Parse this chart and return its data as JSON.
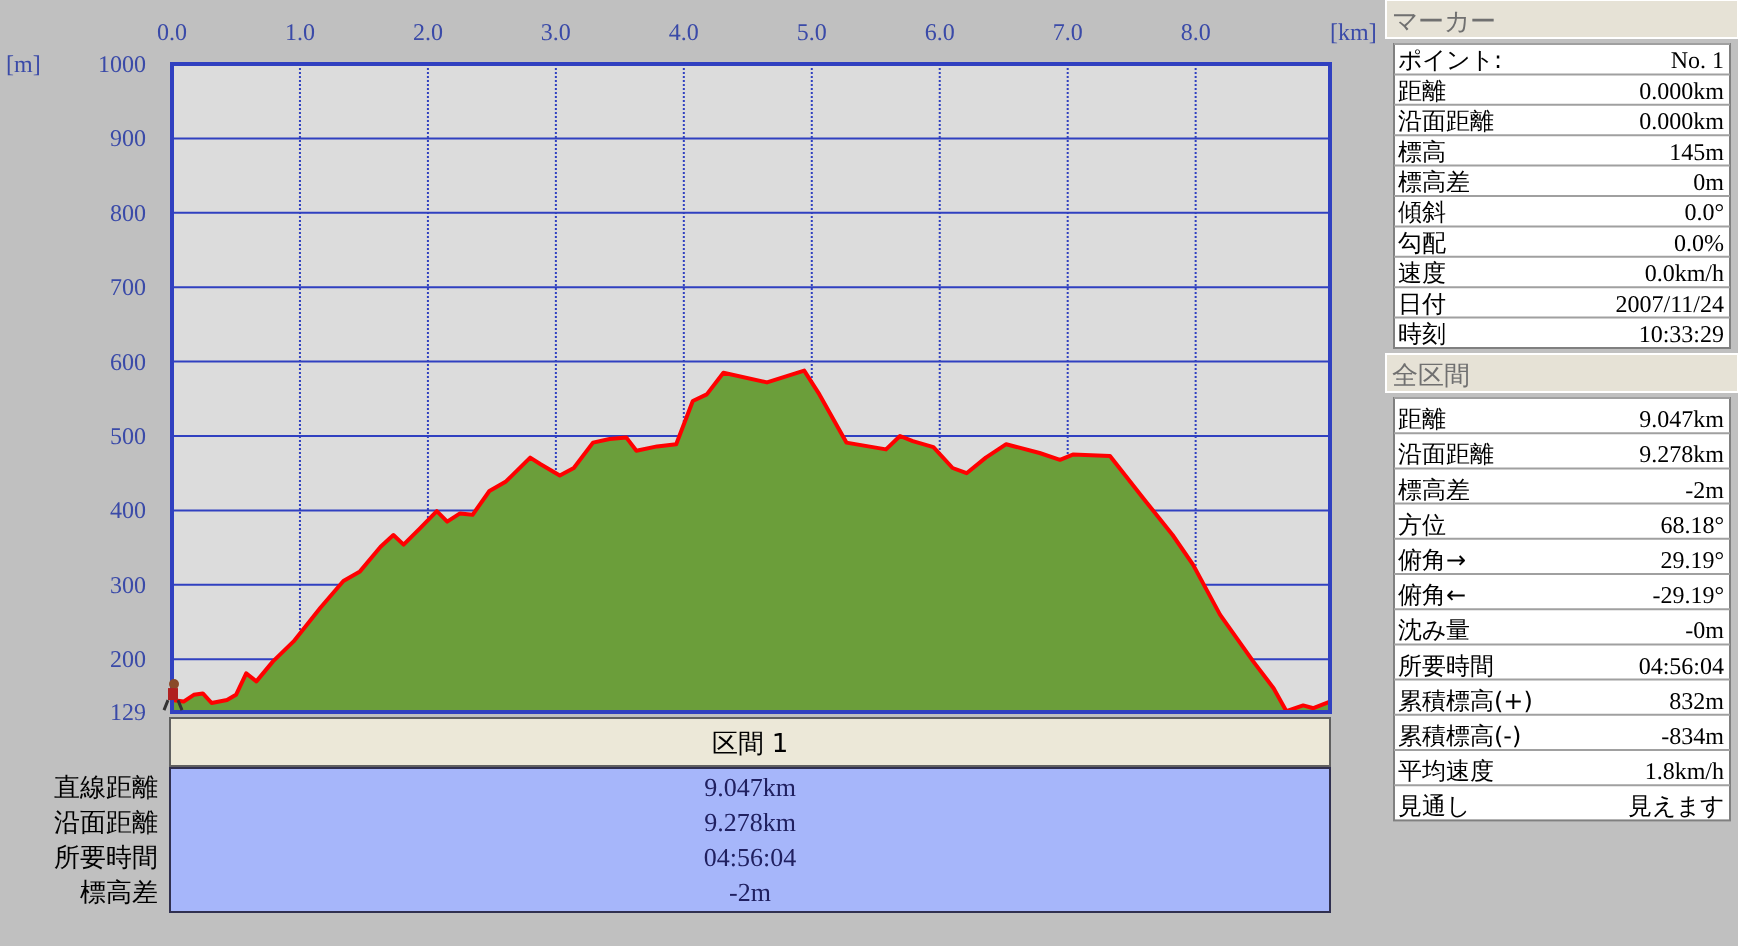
{
  "chart_data": [
    {
      "type": "area",
      "xlabel": "[km]",
      "ylabel": "[m]",
      "grid": true,
      "color": "#6b9e3a",
      "x": [
        0,
        0.09,
        0.17,
        0.24,
        0.31,
        0.43,
        0.5,
        0.58,
        0.66,
        0.79,
        0.95,
        1.16,
        1.34,
        1.47,
        1.63,
        1.73,
        1.81,
        1.94,
        2.07,
        2.15,
        2.25,
        2.35,
        2.48,
        2.61,
        2.8,
        2.88,
        3.03,
        3.14,
        3.29,
        3.42,
        3.55,
        3.63,
        3.79,
        3.94,
        4.07,
        4.18,
        4.31,
        4.65,
        4.94,
        5.06,
        5.27,
        5.58,
        5.69,
        5.79,
        5.95,
        6.1,
        6.21,
        6.36,
        6.52,
        6.78,
        6.94,
        7.04,
        7.33,
        7.61,
        7.82,
        7.98,
        8.19,
        8.45,
        8.61,
        8.71,
        8.84,
        8.92,
        9.05
      ],
      "values": [
        145,
        143,
        152,
        154,
        141,
        145,
        152,
        181,
        170,
        197,
        224,
        269,
        305,
        318,
        351,
        367,
        354,
        376,
        399,
        385,
        396,
        394,
        426,
        439,
        471,
        462,
        447,
        457,
        491,
        496,
        498,
        480,
        486,
        489,
        547,
        556,
        585,
        572,
        588,
        556,
        491,
        482,
        500,
        493,
        485,
        457,
        450,
        471,
        489,
        477,
        468,
        475,
        473,
        412,
        367,
        327,
        260,
        197,
        161,
        130,
        138,
        134,
        143
      ],
      "xlim": [
        0,
        9.05
      ],
      "ylim": [
        129,
        1000
      ],
      "xticks": [
        {
          "value": 0,
          "label": "0.0"
        },
        {
          "value": 1,
          "label": "1.0"
        },
        {
          "value": 2,
          "label": "2.0"
        },
        {
          "value": 3,
          "label": "3.0"
        },
        {
          "value": 4,
          "label": "4.0"
        },
        {
          "value": 5,
          "label": "5.0"
        },
        {
          "value": 6,
          "label": "6.0"
        },
        {
          "value": 7,
          "label": "7.0"
        },
        {
          "value": 8,
          "label": "8.0"
        }
      ],
      "yticks": [
        129,
        200,
        300,
        400,
        500,
        600,
        700,
        800,
        900,
        1000
      ]
    },
    {
      "type": "other",
      "title": "マーカー",
      "annotations": [
        "ポイント:",
        "No. 1",
        "距離",
        "0.000km",
        "沿面距離",
        "0.000km",
        "標高",
        "145m",
        "標高差",
        "0m",
        "傾斜",
        "0.0°",
        "勾配",
        "0.0%",
        "速度",
        "0.0km/h",
        "日付",
        "2007/11/24",
        "時刻",
        "10:33:29"
      ]
    },
    {
      "type": "other",
      "title": "全区間",
      "annotations": [
        "距離",
        "9.047km",
        "沿面距離",
        "9.278km",
        "標高差",
        "-2m",
        "方位",
        "68.18°",
        "俯角→",
        "29.19°",
        "俯角←",
        "-29.19°",
        "沈み量",
        "-0m",
        "所要時間",
        "04:56:04",
        "累積標高(+)",
        "832m",
        "累積標高(-)",
        "-834m",
        "平均速度",
        "1.8km/h",
        "見通し",
        "見えます"
      ]
    },
    {
      "type": "other",
      "title": "区間 1",
      "annotations": [
        "直線距離",
        "9.047km",
        "沿面距離",
        "9.278km",
        "所要時間",
        "04:56:04",
        "標高差",
        "-2m"
      ]
    }
  ]
}
